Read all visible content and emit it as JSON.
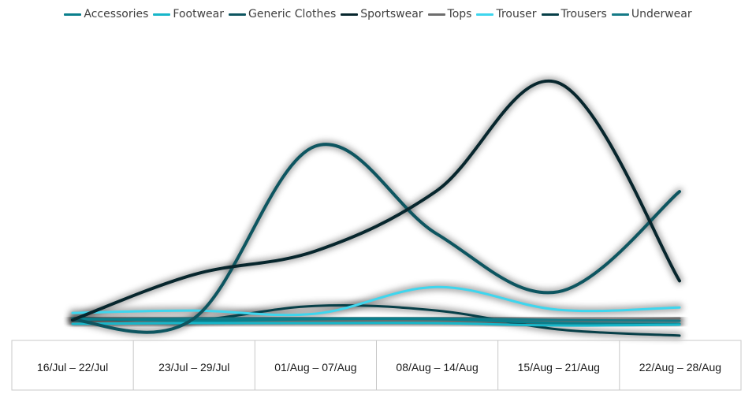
{
  "chart_data": {
    "type": "line",
    "title": "",
    "xlabel": "",
    "ylabel": "",
    "categories": [
      "16/Jul – 22/Jul",
      "23/Jul – 29/Jul",
      "01/Aug – 07/Aug",
      "08/Aug – 14/Aug",
      "15/Aug – 21/Aug",
      "22/Aug – 28/Aug"
    ],
    "ylim": [
      0,
      320
    ],
    "grid": false,
    "legend_position": "top",
    "smooth": true,
    "series": [
      {
        "name": "Accessories",
        "color": "#0a7f8c",
        "values": [
          12,
          9,
          11,
          11,
          6,
          5
        ]
      },
      {
        "name": "Footwear",
        "color": "#17b6c9",
        "values": [
          5,
          6,
          6,
          6,
          3,
          4
        ]
      },
      {
        "name": "Generic Clothes",
        "color": "#0d5560",
        "values": [
          10,
          12,
          232,
          120,
          46,
          174
        ]
      },
      {
        "name": "Sportswear",
        "color": "#07262d",
        "values": [
          10,
          68,
          98,
          175,
          313,
          60
        ]
      },
      {
        "name": "Tops",
        "color": "#6d6d6d",
        "values": [
          6,
          8,
          8,
          9,
          8,
          12
        ]
      },
      {
        "name": "Trouser",
        "color": "#3ed6ee",
        "values": [
          19,
          22,
          18,
          52,
          23,
          26
        ]
      },
      {
        "name": "Trousers",
        "color": "#073f48",
        "values": [
          12,
          10,
          28,
          22,
          -2,
          -10
        ]
      },
      {
        "name": "Underwear",
        "color": "#157a87",
        "values": [
          10,
          12,
          12,
          12,
          10,
          9
        ]
      }
    ]
  }
}
